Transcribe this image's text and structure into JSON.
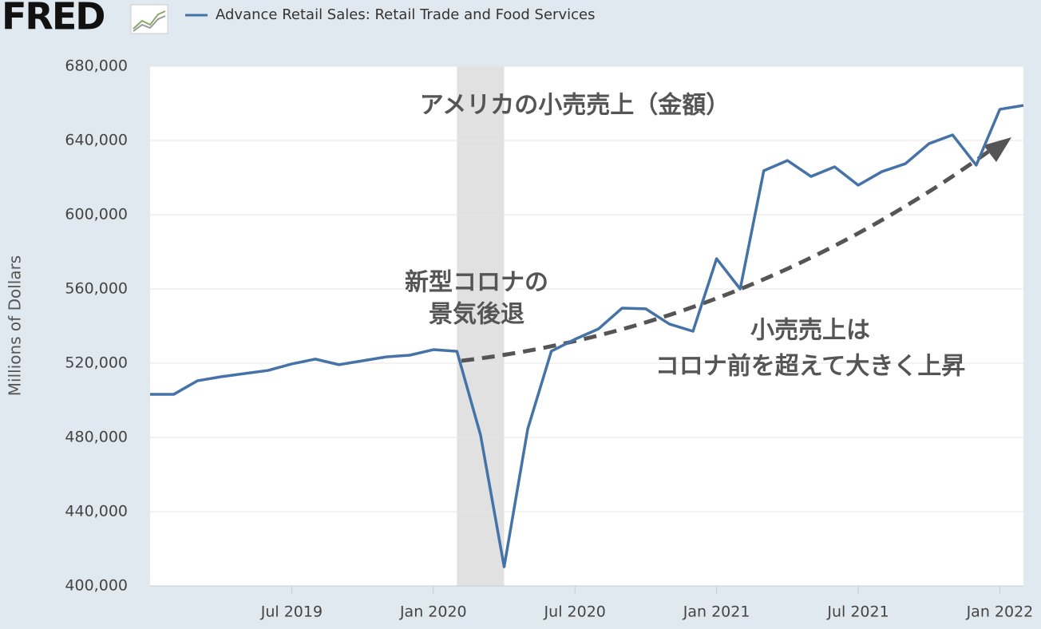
{
  "logo": "FRED",
  "chart_data": {
    "type": "line",
    "title": "アメリカの小売売上（金額）",
    "annotations": [
      [
        "新型コロナの",
        "景気後退"
      ],
      [
        "小売売上は",
        "コロナ前を超えて大きく上昇"
      ]
    ],
    "y_label": "Millions of Dollars",
    "x": [
      "2019-01",
      "2019-02",
      "2019-03",
      "2019-04",
      "2019-05",
      "2019-06",
      "2019-07",
      "2019-08",
      "2019-09",
      "2019-10",
      "2019-11",
      "2019-12",
      "2020-01",
      "2020-02",
      "2020-03",
      "2020-04",
      "2020-05",
      "2020-06",
      "2020-07",
      "2020-08",
      "2020-09",
      "2020-10",
      "2020-11",
      "2020-12",
      "2021-01",
      "2021-02",
      "2021-03",
      "2021-04",
      "2021-05",
      "2021-06",
      "2021-07",
      "2021-08",
      "2021-09",
      "2021-10",
      "2021-11",
      "2021-12",
      "2022-01",
      "2022-02"
    ],
    "series": [
      {
        "name": "Advance Retail Sales: Retail Trade and Food Services",
        "color": "#4572a7",
        "values": [
          503200,
          503200,
          510500,
          512700,
          514400,
          516100,
          519600,
          522200,
          519200,
          521300,
          523400,
          524300,
          527300,
          526400,
          481300,
          410300,
          484600,
          526500,
          532900,
          538500,
          549700,
          549300,
          541100,
          537200,
          576300,
          560000,
          623700,
          629200,
          620600,
          625800,
          615900,
          623200,
          627500,
          638300,
          643000,
          626700,
          656800,
          658900
        ]
      }
    ],
    "recession": [
      "2020-02",
      "2020-04"
    ],
    "xlim": [
      "2019-01",
      "2022-02"
    ],
    "xticks": [
      {
        "value": "2019-07",
        "label": "Jul 2019"
      },
      {
        "value": "2020-01",
        "label": "Jan 2020"
      },
      {
        "value": "2020-07",
        "label": "Jul 2020"
      },
      {
        "value": "2021-01",
        "label": "Jan 2021"
      },
      {
        "value": "2021-07",
        "label": "Jul 2021"
      },
      {
        "value": "2022-01",
        "label": "Jan 2022"
      }
    ],
    "ylim": [
      400000,
      680000
    ],
    "yticks": [
      {
        "value": 400000,
        "label": "400,000"
      },
      {
        "value": 440000,
        "label": "440,000"
      },
      {
        "value": 480000,
        "label": "480,000"
      },
      {
        "value": 520000,
        "label": "520,000"
      },
      {
        "value": 560000,
        "label": "560,000"
      },
      {
        "value": 600000,
        "label": "600,000"
      },
      {
        "value": 640000,
        "label": "640,000"
      },
      {
        "value": 680000,
        "label": "680,000"
      }
    ],
    "grid": true
  }
}
